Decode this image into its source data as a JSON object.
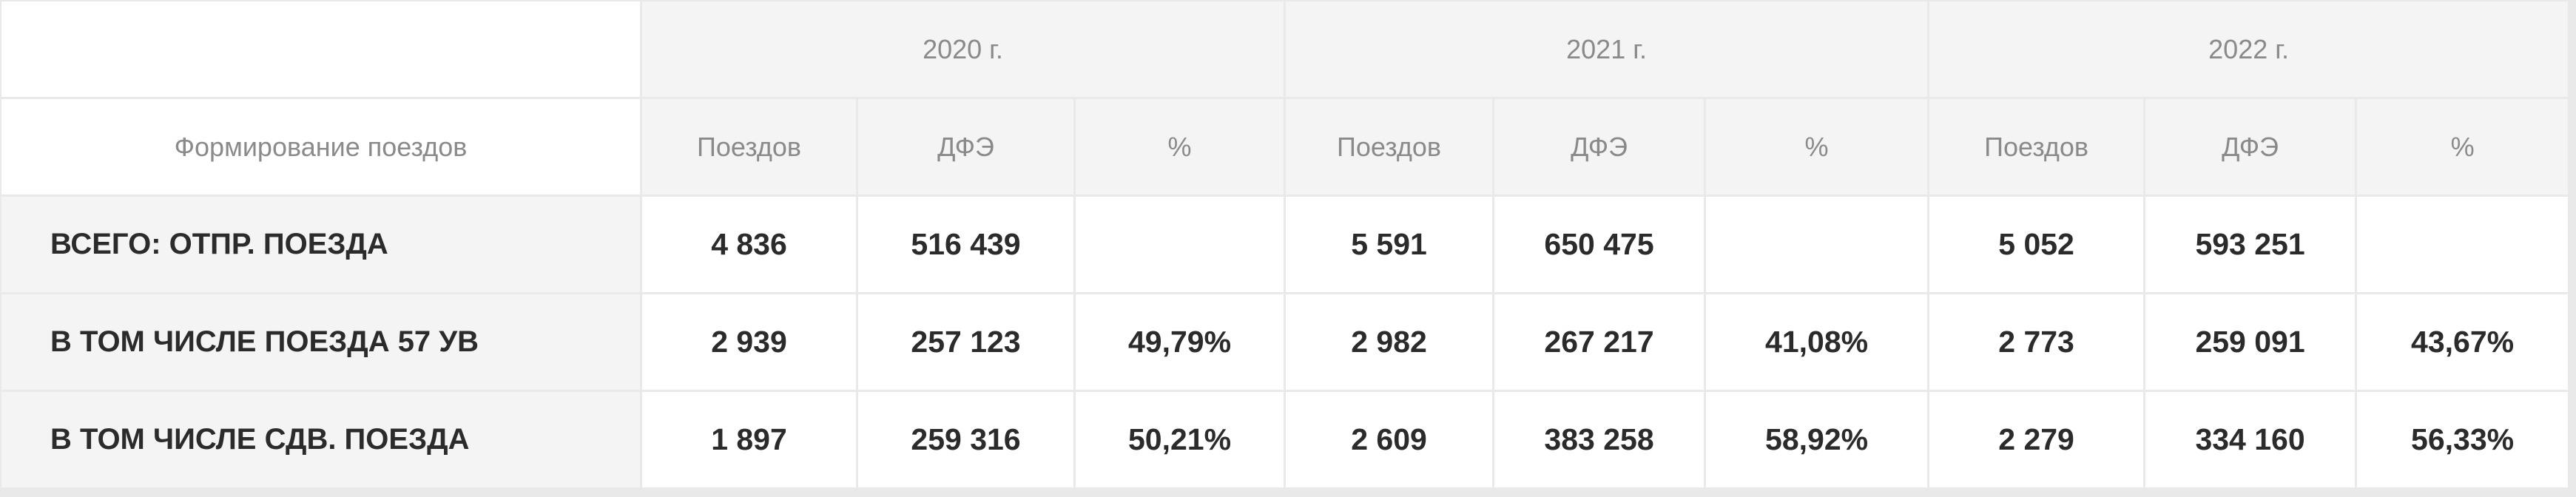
{
  "header": {
    "row_label_title": "Формирование поездов",
    "years": [
      "2020 г.",
      "2021 г.",
      "2022 г."
    ],
    "subcolumns": [
      "Поездов",
      "ДФЭ",
      "%"
    ]
  },
  "rows": [
    {
      "label": "ВСЕГО: ОТПР. ПОЕЗДА",
      "values": [
        "4 836",
        "516 439",
        "",
        "5 591",
        "650 475",
        "",
        "5 052",
        "593 251",
        ""
      ]
    },
    {
      "label": "В ТОМ ЧИСЛЕ ПОЕЗДА 57 УВ",
      "values": [
        "2 939",
        "257 123",
        "49,79%",
        "2 982",
        "267 217",
        "41,08%",
        "2 773",
        "259 091",
        "43,67%"
      ]
    },
    {
      "label": "В ТОМ ЧИСЛЕ СДВ. ПОЕЗДА",
      "values": [
        "1 897",
        "259 316",
        "50,21%",
        "2 609",
        "383 258",
        "58,92%",
        "2 279",
        "334 160",
        "56,33%"
      ]
    }
  ]
}
